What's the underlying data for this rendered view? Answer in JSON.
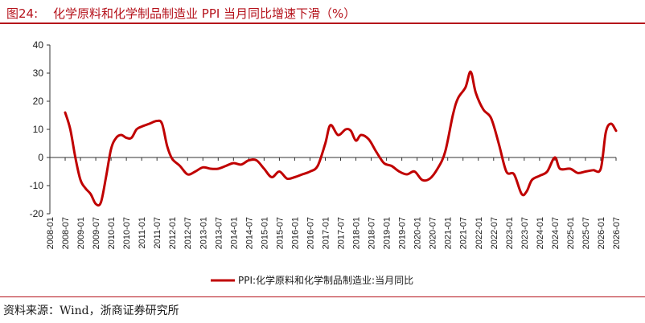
{
  "header": {
    "figure_label": "图24:",
    "title": "化学原料和化学制品制造业 PPI 当月同比增速下滑（%）"
  },
  "footer": {
    "source": "资料来源：Wind，浙商证券研究所"
  },
  "colors": {
    "accent": "#b5121b",
    "series": "#c00000",
    "axis": "#333333"
  },
  "chart_data": {
    "type": "line",
    "title": "",
    "xlabel": "",
    "ylabel": "",
    "ylim": [
      -20,
      40
    ],
    "yticks": [
      -20,
      -10,
      0,
      10,
      20,
      30,
      40
    ],
    "xlim": [
      "2008-01",
      "2026-07"
    ],
    "xticks": [
      "2008-01",
      "2008-07",
      "2009-01",
      "2009-07",
      "2010-01",
      "2010-07",
      "2011-01",
      "2011-07",
      "2012-01",
      "2012-07",
      "2013-01",
      "2013-07",
      "2014-01",
      "2014-07",
      "2015-01",
      "2015-07",
      "2016-01",
      "2016-07",
      "2017-01",
      "2017-07",
      "2018-01",
      "2018-07",
      "2019-01",
      "2019-07",
      "2020-01",
      "2020-07",
      "2021-01",
      "2021-07",
      "2022-01",
      "2022-07",
      "2023-01",
      "2023-07",
      "2024-01",
      "2024-07",
      "2025-01",
      "2025-07",
      "2026-01",
      "2026-07"
    ],
    "legend": {
      "position": "bottom"
    },
    "grid": false,
    "series": [
      {
        "name": "PPI:化学原料和化学制品制造业:当月同比",
        "points": [
          [
            "2008-07",
            16
          ],
          [
            "2008-09",
            10
          ],
          [
            "2008-11",
            0
          ],
          [
            "2009-01",
            -8
          ],
          [
            "2009-03",
            -11
          ],
          [
            "2009-05",
            -13
          ],
          [
            "2009-07",
            -16.5
          ],
          [
            "2009-09",
            -16
          ],
          [
            "2009-11",
            -7
          ],
          [
            "2010-01",
            3
          ],
          [
            "2010-03",
            7
          ],
          [
            "2010-05",
            8
          ],
          [
            "2010-07",
            7
          ],
          [
            "2010-09",
            7
          ],
          [
            "2010-11",
            10
          ],
          [
            "2011-01",
            11
          ],
          [
            "2011-04",
            12
          ],
          [
            "2011-07",
            13
          ],
          [
            "2011-09",
            12
          ],
          [
            "2011-11",
            4
          ],
          [
            "2012-01",
            -0.5
          ],
          [
            "2012-04",
            -3
          ],
          [
            "2012-07",
            -6
          ],
          [
            "2012-10",
            -5
          ],
          [
            "2013-01",
            -3.5
          ],
          [
            "2013-04",
            -4
          ],
          [
            "2013-07",
            -4
          ],
          [
            "2013-10",
            -3
          ],
          [
            "2014-01",
            -2
          ],
          [
            "2014-04",
            -2.5
          ],
          [
            "2014-07",
            -1
          ],
          [
            "2014-10",
            -1
          ],
          [
            "2015-01",
            -4
          ],
          [
            "2015-04",
            -7
          ],
          [
            "2015-07",
            -5
          ],
          [
            "2015-10",
            -7.5
          ],
          [
            "2016-01",
            -7
          ],
          [
            "2016-04",
            -6
          ],
          [
            "2016-07",
            -5
          ],
          [
            "2016-10",
            -3
          ],
          [
            "2017-01",
            5
          ],
          [
            "2017-03",
            11.5
          ],
          [
            "2017-06",
            8
          ],
          [
            "2017-09",
            10
          ],
          [
            "2017-11",
            9.5
          ],
          [
            "2018-01",
            6
          ],
          [
            "2018-03",
            8
          ],
          [
            "2018-06",
            6.5
          ],
          [
            "2018-09",
            2
          ],
          [
            "2018-12",
            -2
          ],
          [
            "2019-03",
            -3
          ],
          [
            "2019-06",
            -5
          ],
          [
            "2019-09",
            -6
          ],
          [
            "2019-12",
            -5
          ],
          [
            "2020-03",
            -8
          ],
          [
            "2020-06",
            -7.5
          ],
          [
            "2020-09",
            -4
          ],
          [
            "2020-12",
            2
          ],
          [
            "2021-03",
            15
          ],
          [
            "2021-05",
            21
          ],
          [
            "2021-08",
            25
          ],
          [
            "2021-10",
            30.5
          ],
          [
            "2021-12",
            23
          ],
          [
            "2022-03",
            17
          ],
          [
            "2022-06",
            14
          ],
          [
            "2022-09",
            5
          ],
          [
            "2022-12",
            -5
          ],
          [
            "2023-03",
            -6
          ],
          [
            "2023-06",
            -13
          ],
          [
            "2023-08",
            -12
          ],
          [
            "2023-10",
            -8
          ],
          [
            "2024-01",
            -6.5
          ],
          [
            "2024-04",
            -5
          ],
          [
            "2024-07",
            0
          ],
          [
            "2024-09",
            -4
          ],
          [
            "2025-01",
            -4
          ],
          [
            "2025-04",
            -5.5
          ],
          [
            "2025-07",
            -5
          ],
          [
            "2025-10",
            -4.5
          ],
          [
            "2026-01",
            -4
          ],
          [
            "2026-03",
            9
          ],
          [
            "2026-05",
            12
          ],
          [
            "2026-07",
            9.5
          ]
        ]
      }
    ]
  }
}
